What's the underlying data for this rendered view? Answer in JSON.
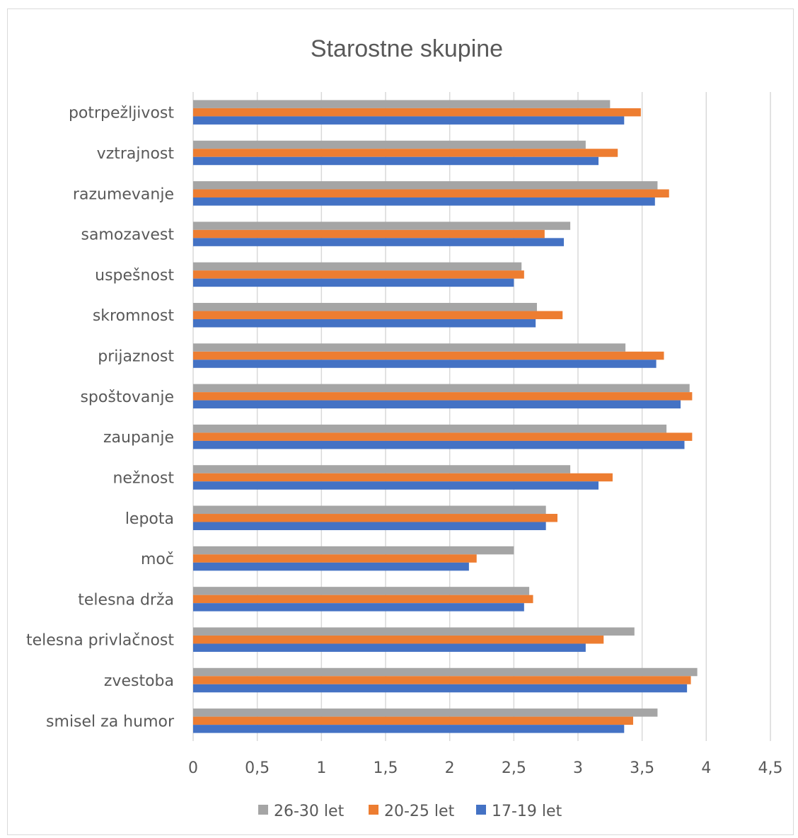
{
  "chart_data": {
    "type": "bar",
    "orientation": "horizontal",
    "title": "Starostne skupine",
    "xlabel": "",
    "ylabel": "",
    "xlim": [
      0,
      4.5
    ],
    "xticks": [
      "0",
      "0,5",
      "1",
      "1,5",
      "2",
      "2,5",
      "3",
      "3,5",
      "4",
      "4,5"
    ],
    "grid": "vertical",
    "legend_position": "bottom",
    "categories": [
      "potrpežljivost",
      "vztrajnost",
      "razumevanje",
      "samozavest",
      "uspešnost",
      "skromnost",
      "prijaznost",
      "spoštovanje",
      "zaupanje",
      "nežnost",
      "lepota",
      "moč",
      "telesna drža",
      "telesna privlačnost",
      "zvestoba",
      "smisel za humor"
    ],
    "series": [
      {
        "name": "26-30 let",
        "color": "#a5a5a5",
        "values": [
          3.25,
          3.06,
          3.62,
          2.94,
          2.56,
          2.68,
          3.37,
          3.87,
          3.69,
          2.94,
          2.75,
          2.5,
          2.62,
          3.44,
          3.93,
          3.62
        ]
      },
      {
        "name": "20-25 let",
        "color": "#ed7d31",
        "values": [
          3.49,
          3.31,
          3.71,
          2.74,
          2.58,
          2.88,
          3.67,
          3.89,
          3.89,
          3.27,
          2.84,
          2.21,
          2.65,
          3.2,
          3.88,
          3.43
        ]
      },
      {
        "name": "17-19 let",
        "color": "#4472c4",
        "values": [
          3.36,
          3.16,
          3.6,
          2.89,
          2.5,
          2.67,
          3.61,
          3.8,
          3.83,
          3.16,
          2.75,
          2.15,
          2.58,
          3.06,
          3.85,
          3.36
        ]
      }
    ]
  }
}
